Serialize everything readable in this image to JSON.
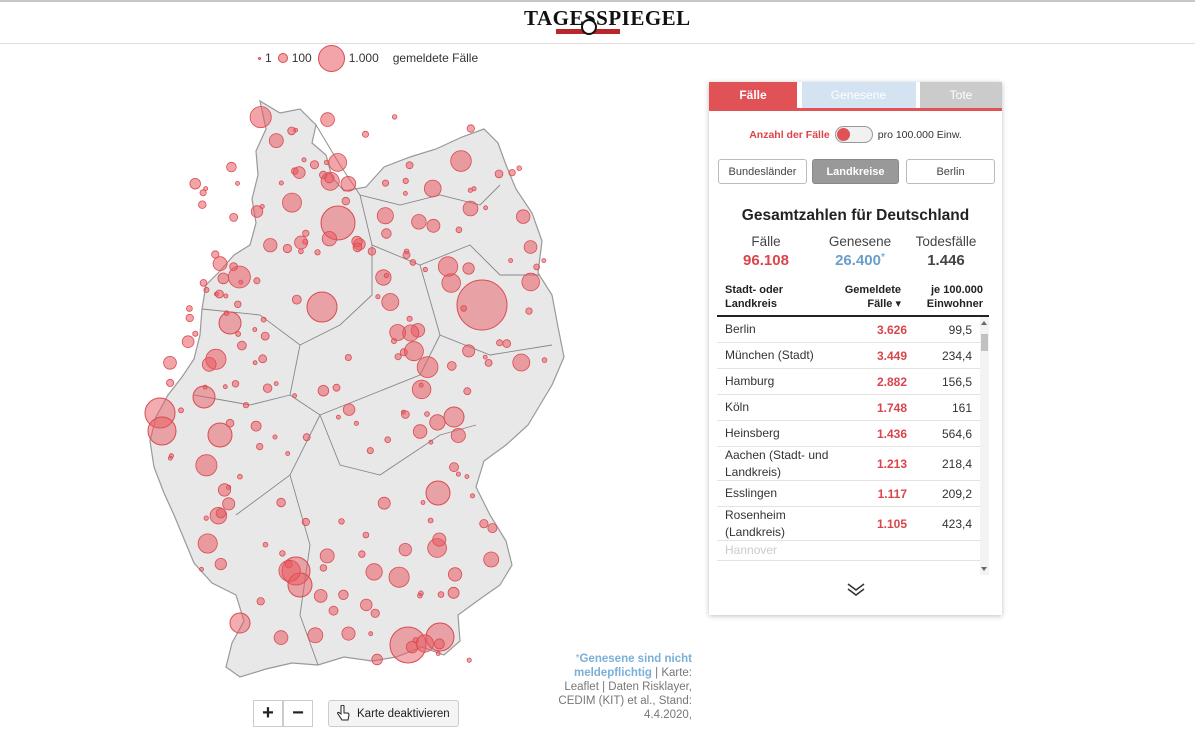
{
  "header": {
    "logo_text": "TAGESSPIEGEL"
  },
  "legend": {
    "item1": "1",
    "item2": "100",
    "item3": "1.000",
    "label": "gemeldete Fälle"
  },
  "map": {
    "zoom_in": "+",
    "zoom_out": "−",
    "deactivate_label": "Karte deaktivieren"
  },
  "footnote": {
    "star": "*",
    "highlight": "Genesene sind nicht meldepflichtig",
    "separator": " | ",
    "credits": "Karte: Leaflet | Daten Risklayer, CEDIM (KIT) et al., Stand: 4.4.2020,"
  },
  "panel": {
    "tabs": [
      {
        "label": "Fälle"
      },
      {
        "label": "Genesene"
      },
      {
        "label": "Tote"
      }
    ],
    "toggle": {
      "left_label": "Anzahl der Fälle",
      "right_label": "pro 100.000 Einw."
    },
    "segments": [
      {
        "label": "Bundesländer"
      },
      {
        "label": "Landkreise"
      },
      {
        "label": "Berlin"
      }
    ],
    "totals": {
      "title": "Gesamtzahlen für Deutschland",
      "cases_label": "Fälle",
      "cases_value": "96.108",
      "recovered_label": "Genesene",
      "recovered_value": "26.400",
      "recovered_star": "*",
      "deaths_label": "Todesfälle",
      "deaths_value": "1.446"
    },
    "table": {
      "col1": "Stadt- oder Landkreis",
      "col2": "Gemeldete Fälle ▾",
      "col3": "je 100.000 Einwohner",
      "rows": [
        {
          "name": "Berlin",
          "cases": "3.626",
          "per100k": "99,5"
        },
        {
          "name": "München (Stadt)",
          "cases": "3.449",
          "per100k": "234,4"
        },
        {
          "name": "Hamburg",
          "cases": "2.882",
          "per100k": "156,5"
        },
        {
          "name": "Köln",
          "cases": "1.748",
          "per100k": "161"
        },
        {
          "name": "Heinsberg",
          "cases": "1.436",
          "per100k": "564,6"
        },
        {
          "name": "Aachen (Stadt- und Landkreis)",
          "cases": "1.213",
          "per100k": "218,4"
        },
        {
          "name": "Esslingen",
          "cases": "1.117",
          "per100k": "209,2"
        },
        {
          "name": "Rosenheim (Landkreis)",
          "cases": "1.105",
          "per100k": "423,4"
        },
        {
          "name": "Hannover",
          "cases": "",
          "per100k": ""
        }
      ]
    }
  },
  "colors": {
    "accent": "#e05256",
    "recovered": "#6a9ecb",
    "bubble": "#e85a60"
  }
}
